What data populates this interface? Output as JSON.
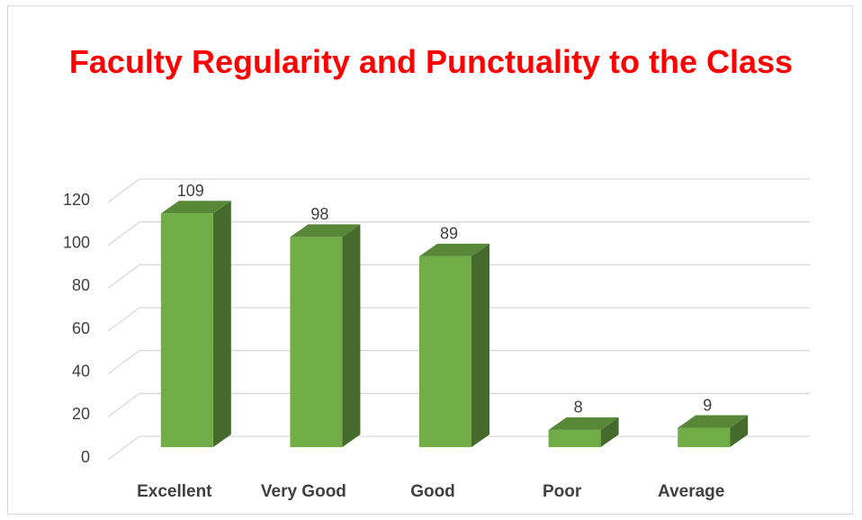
{
  "chart_data": {
    "type": "bar3d",
    "title": "Faculty Regularity and Punctuality to the Class",
    "categories": [
      "Excellent",
      "Very Good",
      "Good",
      "Poor",
      "Average"
    ],
    "values": [
      109,
      98,
      89,
      8,
      9
    ],
    "color": "#70ad47",
    "ylim": [
      0,
      120
    ],
    "yticks": [
      0,
      20,
      40,
      60,
      80,
      100,
      120
    ],
    "grid": true
  }
}
